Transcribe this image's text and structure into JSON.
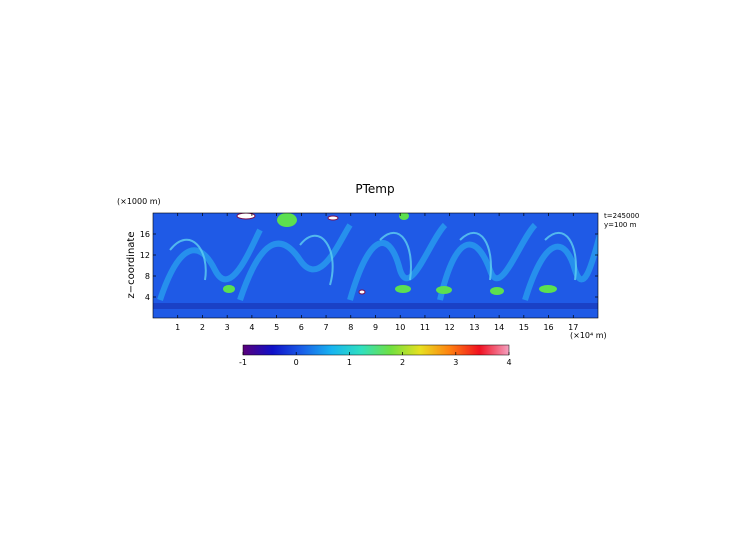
{
  "chart_data": {
    "type": "heatmap",
    "title": "PTemp",
    "x_unit": "(×10⁴ m)",
    "y_label": "z−coordinate",
    "y_unit": "(×1000 m)",
    "annotations": [
      "t=245000",
      "y=100 m"
    ],
    "xlim": [
      0,
      18
    ],
    "xticks": [
      1,
      2,
      3,
      4,
      5,
      6,
      7,
      8,
      9,
      10,
      11,
      12,
      13,
      14,
      15,
      16,
      17
    ],
    "ylim": [
      0,
      20
    ],
    "yticks": [
      4,
      8,
      12,
      16
    ],
    "colorbar": {
      "lim": [
        -1,
        4
      ],
      "ticks": [
        -1,
        0,
        1,
        2,
        3,
        4
      ],
      "colors": [
        "#5a007a",
        "#1010c8",
        "#1a5fe8",
        "#18b4f0",
        "#30e0c0",
        "#70e040",
        "#e8e020",
        "#ff8010",
        "#f01020",
        "#f4a0c0"
      ]
    }
  }
}
